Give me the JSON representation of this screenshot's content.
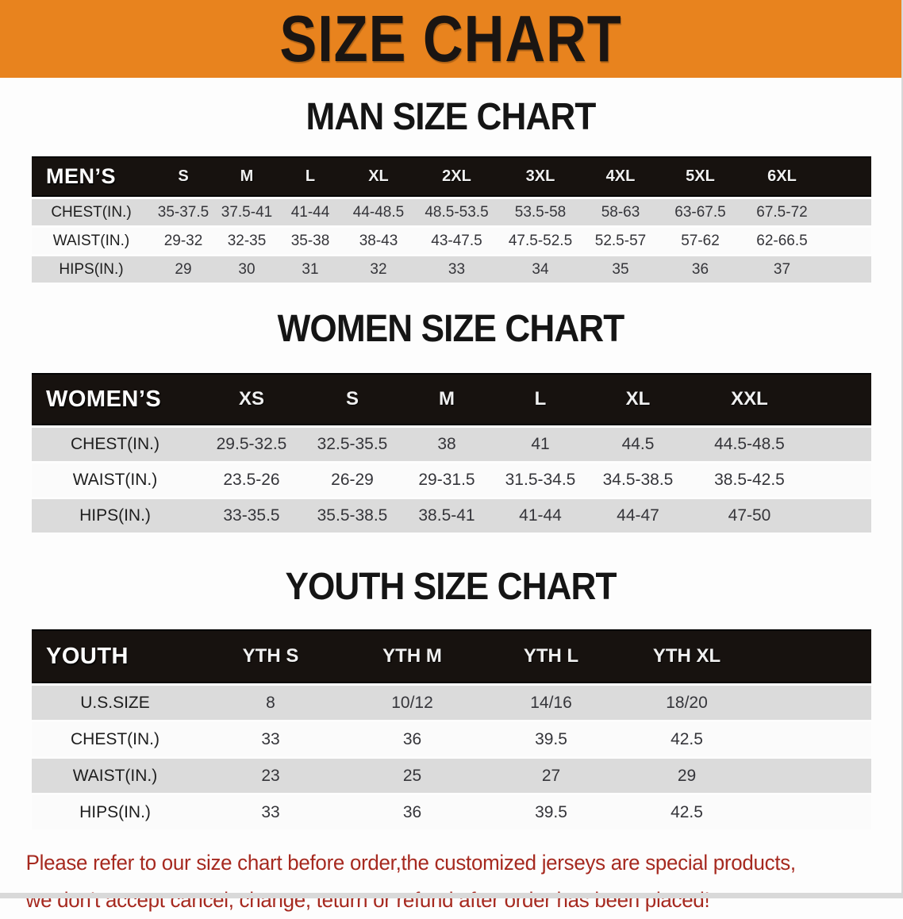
{
  "banner": {
    "title": "SIZE CHART",
    "bg_color": "#E8831E",
    "text_color": "#1A1512"
  },
  "sections": [
    {
      "title": "MAN SIZE CHART",
      "header_label": "MEN’S",
      "columns": [
        "S",
        "M",
        "L",
        "XL",
        "2XL",
        "3XL",
        "4XL",
        "5XL",
        "6XL"
      ],
      "rows": [
        {
          "label": "CHEST(IN.)",
          "values": [
            "35-37.5",
            "37.5-41",
            "41-44",
            "44-48.5",
            "48.5-53.5",
            "53.5-58",
            "58-63",
            "63-67.5",
            "67.5-72"
          ]
        },
        {
          "label": "WAIST(IN.)",
          "values": [
            "29-32",
            "32-35",
            "35-38",
            "38-43",
            "43-47.5",
            "47.5-52.5",
            "52.5-57",
            "57-62",
            "62-66.5"
          ]
        },
        {
          "label": "HIPS(IN.)",
          "values": [
            "29",
            "30",
            "31",
            "32",
            "33",
            "34",
            "35",
            "36",
            "37"
          ]
        }
      ]
    },
    {
      "title": "WOMEN SIZE CHART",
      "header_label": "WOMEN’S",
      "columns": [
        "XS",
        "S",
        "M",
        "L",
        "XL",
        "XXL"
      ],
      "rows": [
        {
          "label": "CHEST(IN.)",
          "values": [
            "29.5-32.5",
            "32.5-35.5",
            "38",
            "41",
            "44.5",
            "44.5-48.5"
          ]
        },
        {
          "label": "WAIST(IN.)",
          "values": [
            "23.5-26",
            "26-29",
            "29-31.5",
            "31.5-34.5",
            "34.5-38.5",
            "38.5-42.5"
          ]
        },
        {
          "label": "HIPS(IN.)",
          "values": [
            "33-35.5",
            "35.5-38.5",
            "38.5-41",
            "41-44",
            "44-47",
            "47-50"
          ]
        }
      ]
    },
    {
      "title": "YOUTH SIZE CHART",
      "header_label": "YOUTH",
      "columns": [
        "YTH S",
        "YTH M",
        "YTH L",
        "YTH XL"
      ],
      "rows": [
        {
          "label": "U.S.SIZE",
          "values": [
            "8",
            "10/12",
            "14/16",
            "18/20"
          ]
        },
        {
          "label": "CHEST(IN.)",
          "values": [
            "33",
            "36",
            "39.5",
            "42.5"
          ]
        },
        {
          "label": "WAIST(IN.)",
          "values": [
            "23",
            "25",
            "27",
            "29"
          ]
        },
        {
          "label": "HIPS(IN.)",
          "values": [
            "33",
            "36",
            "39.5",
            "42.5"
          ]
        }
      ]
    }
  ],
  "footer": {
    "line1": "Please refer to our size chart before order,the customized jerseys are special products,",
    "line2": "we don't accept cancel, change, teturn or refund after order has been placed!",
    "text_color": "#A6291F"
  },
  "colors": {
    "banner_orange": "#E8831E",
    "table_header_black": "#17120F",
    "row_gray": "#DBDBDB",
    "row_white": "#FBFBFB",
    "notice_red": "#A6291F",
    "bottom_strip_gray": "#D9D9D9"
  }
}
